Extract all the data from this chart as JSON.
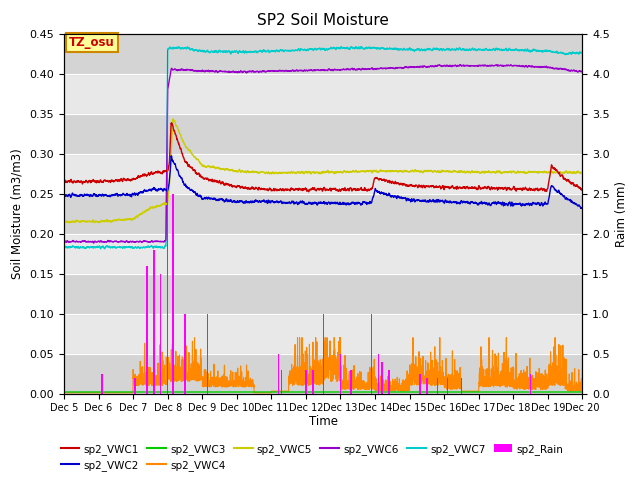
{
  "title": "SP2 Soil Moisture",
  "xlabel": "Time",
  "ylabel_left": "Soil Moisture (m3/m3)",
  "ylabel_right": "Raim (mm)",
  "ylim_left": [
    0.0,
    0.45
  ],
  "ylim_right": [
    0.0,
    4.5
  ],
  "background_color": "#ffffff",
  "plot_bg_color": "#e8e8e8",
  "stripe_color": "#d8d8d8",
  "tz_label": "TZ_osu",
  "tz_bg": "#ffff99",
  "tz_border": "#cc8800",
  "x_tick_labels": [
    "Dec 5",
    "Dec 6",
    "Dec 7",
    "Dec 8",
    "Dec 9",
    "Dec 10",
    "Dec 11",
    "Dec 12",
    "Dec 13",
    "Dec 14",
    "Dec 15",
    "Dec 16",
    "Dec 17",
    "Dec 18",
    "Dec 19",
    "Dec 20"
  ],
  "series_colors": {
    "sp2_VWC1": "#cc0000",
    "sp2_VWC2": "#0000cc",
    "sp2_VWC3": "#00cc00",
    "sp2_VWC4": "#ff8800",
    "sp2_VWC5": "#cccc00",
    "sp2_VWC6": "#9900cc",
    "sp2_VWC7": "#00cccc",
    "sp2_Rain": "#ff00ff"
  }
}
